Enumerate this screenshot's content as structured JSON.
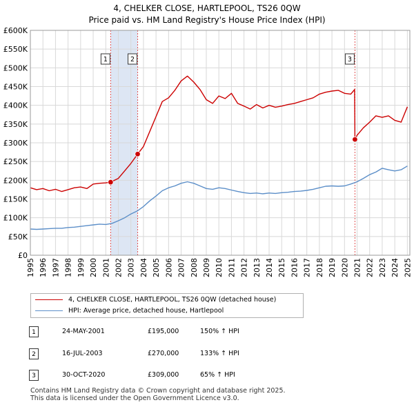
{
  "title_line1": "4, CHELKER CLOSE, HARTLEPOOL, TS26 0QW",
  "title_line2": "Price paid vs. HM Land Registry's House Price Index (HPI)",
  "legend": {
    "property": "4, CHELKER CLOSE, HARTLEPOOL, TS26 0QW (detached house)",
    "hpi": "HPI: Average price, detached house, Hartlepool"
  },
  "colors": {
    "property": "#cc0000",
    "hpi": "#5b8ec8",
    "shade": "#dde6f4",
    "grid": "#d8d8d8"
  },
  "transactions": [
    {
      "num": "1",
      "date": "24-MAY-2001",
      "price": "£195,000",
      "hpi": "150% ↑ HPI"
    },
    {
      "num": "2",
      "date": "16-JUL-2003",
      "price": "£270,000",
      "hpi": "133% ↑ HPI"
    },
    {
      "num": "3",
      "date": "30-OCT-2020",
      "price": "£309,000",
      "hpi": "65% ↑ HPI"
    }
  ],
  "footer_line1": "Contains HM Land Registry data © Crown copyright and database right 2025.",
  "footer_line2": "This data is licensed under the Open Government Licence v3.0.",
  "chart_data": {
    "type": "line",
    "title": "4, CHELKER CLOSE, HARTLEPOOL, TS26 0QW — Price paid vs. HM Land Registry's House Price Index (HPI)",
    "xlim": [
      1995,
      2025.2
    ],
    "ylim": [
      0,
      600000
    ],
    "x_ticks": [
      1995,
      1996,
      1997,
      1998,
      1999,
      2000,
      2001,
      2002,
      2003,
      2004,
      2005,
      2006,
      2007,
      2008,
      2009,
      2010,
      2011,
      2012,
      2013,
      2014,
      2015,
      2016,
      2017,
      2018,
      2019,
      2020,
      2021,
      2022,
      2023,
      2024,
      2025
    ],
    "y_ticks": [
      0,
      50000,
      100000,
      150000,
      200000,
      250000,
      300000,
      350000,
      400000,
      450000,
      500000,
      550000,
      600000
    ],
    "y_tick_labels": [
      "£0",
      "£50K",
      "£100K",
      "£150K",
      "£200K",
      "£250K",
      "£300K",
      "£350K",
      "£400K",
      "£450K",
      "£500K",
      "£550K",
      "£600K"
    ],
    "grid": true,
    "shaded_ranges": [
      [
        2001.39,
        2003.54
      ]
    ],
    "sale_markers": [
      {
        "label": "1",
        "x": 2001.39,
        "y": 195000
      },
      {
        "label": "2",
        "x": 2003.54,
        "y": 270000
      },
      {
        "label": "3",
        "x": 2020.83,
        "y": 309000
      }
    ],
    "series": [
      {
        "name": "4, CHELKER CLOSE, HARTLEPOOL, TS26 0QW (detached house)",
        "x": [
          1995.0,
          1995.5,
          1996.0,
          1996.5,
          1997.0,
          1997.5,
          1998.0,
          1998.5,
          1999.0,
          1999.5,
          2000.0,
          2000.5,
          2001.0,
          2001.39,
          2001.7,
          2002.0,
          2002.5,
          2003.0,
          2003.54,
          2004.0,
          2004.5,
          2005.0,
          2005.5,
          2006.0,
          2006.5,
          2007.0,
          2007.5,
          2008.0,
          2008.5,
          2009.0,
          2009.5,
          2010.0,
          2010.5,
          2011.0,
          2011.5,
          2012.0,
          2012.5,
          2013.0,
          2013.5,
          2014.0,
          2014.5,
          2015.0,
          2015.5,
          2016.0,
          2016.5,
          2017.0,
          2017.5,
          2018.0,
          2018.5,
          2019.0,
          2019.5,
          2020.0,
          2020.5,
          2020.8,
          2020.83,
          2021.0,
          2021.5,
          2022.0,
          2022.5,
          2023.0,
          2023.5,
          2024.0,
          2024.5,
          2025.0
        ],
        "values": [
          180000,
          175000,
          178000,
          172000,
          176000,
          170000,
          175000,
          180000,
          182000,
          178000,
          190000,
          192000,
          193000,
          195000,
          200000,
          205000,
          225000,
          245000,
          270000,
          290000,
          330000,
          370000,
          410000,
          420000,
          440000,
          465000,
          478000,
          462000,
          442000,
          415000,
          405000,
          425000,
          418000,
          432000,
          405000,
          398000,
          390000,
          402000,
          393000,
          400000,
          395000,
          398000,
          402000,
          405000,
          410000,
          415000,
          420000,
          430000,
          435000,
          438000,
          440000,
          432000,
          430000,
          442000,
          309000,
          320000,
          340000,
          355000,
          372000,
          368000,
          372000,
          360000,
          355000,
          396000
        ]
      },
      {
        "name": "HPI: Average price, detached house, Hartlepool",
        "x": [
          1995.0,
          1995.5,
          1996.0,
          1996.5,
          1997.0,
          1997.5,
          1998.0,
          1998.5,
          1999.0,
          1999.5,
          2000.0,
          2000.5,
          2001.0,
          2001.5,
          2002.0,
          2002.5,
          2003.0,
          2003.5,
          2004.0,
          2004.5,
          2005.0,
          2005.5,
          2006.0,
          2006.5,
          2007.0,
          2007.5,
          2008.0,
          2008.5,
          2009.0,
          2009.5,
          2010.0,
          2010.5,
          2011.0,
          2011.5,
          2012.0,
          2012.5,
          2013.0,
          2013.5,
          2014.0,
          2014.5,
          2015.0,
          2015.5,
          2016.0,
          2016.5,
          2017.0,
          2017.5,
          2018.0,
          2018.5,
          2019.0,
          2019.5,
          2020.0,
          2020.5,
          2021.0,
          2021.5,
          2022.0,
          2022.5,
          2023.0,
          2023.5,
          2024.0,
          2024.5,
          2025.0
        ],
        "values": [
          70000,
          69000,
          70000,
          71000,
          72000,
          72000,
          74000,
          75000,
          77000,
          79000,
          81000,
          83000,
          82000,
          85000,
          92000,
          100000,
          110000,
          118000,
          130000,
          145000,
          158000,
          172000,
          180000,
          185000,
          192000,
          196000,
          192000,
          185000,
          178000,
          176000,
          180000,
          178000,
          174000,
          170000,
          167000,
          165000,
          166000,
          164000,
          166000,
          165000,
          167000,
          168000,
          170000,
          171000,
          173000,
          176000,
          180000,
          184000,
          185000,
          184000,
          185000,
          190000,
          196000,
          205000,
          215000,
          222000,
          232000,
          228000,
          225000,
          228000,
          238000
        ]
      }
    ]
  }
}
